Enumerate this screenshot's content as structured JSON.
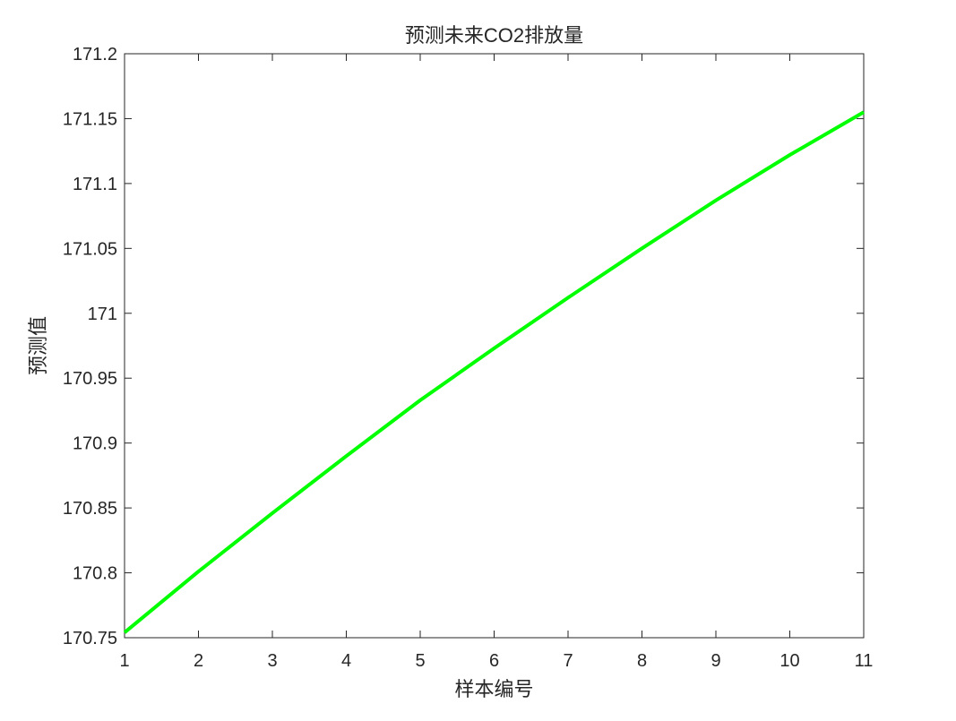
{
  "chart_data": {
    "type": "line",
    "title": "预测未来CO2排放量",
    "xlabel": "样本编号",
    "ylabel": "预测值",
    "xlim": [
      1,
      11
    ],
    "ylim": [
      170.75,
      171.2
    ],
    "x_ticks": [
      1,
      2,
      3,
      4,
      5,
      6,
      7,
      8,
      9,
      10,
      11
    ],
    "x_tick_labels": [
      "1",
      "2",
      "3",
      "4",
      "5",
      "6",
      "7",
      "8",
      "9",
      "10",
      "11"
    ],
    "y_ticks": [
      170.75,
      170.8,
      170.85,
      170.9,
      170.95,
      171,
      171.05,
      171.1,
      171.15,
      171.2
    ],
    "y_tick_labels": [
      "170.75",
      "170.8",
      "170.85",
      "170.9",
      "170.95",
      "171",
      "171.05",
      "171.1",
      "171.15",
      "171.2"
    ],
    "grid": false,
    "series": [
      {
        "color": "#00ff00",
        "x": [
          1,
          2,
          3,
          4,
          5,
          6,
          7,
          8,
          9,
          10,
          11
        ],
        "values": [
          170.754,
          170.801,
          170.846,
          170.89,
          170.933,
          170.973,
          171.012,
          171.05,
          171.087,
          171.122,
          171.155
        ]
      }
    ]
  }
}
